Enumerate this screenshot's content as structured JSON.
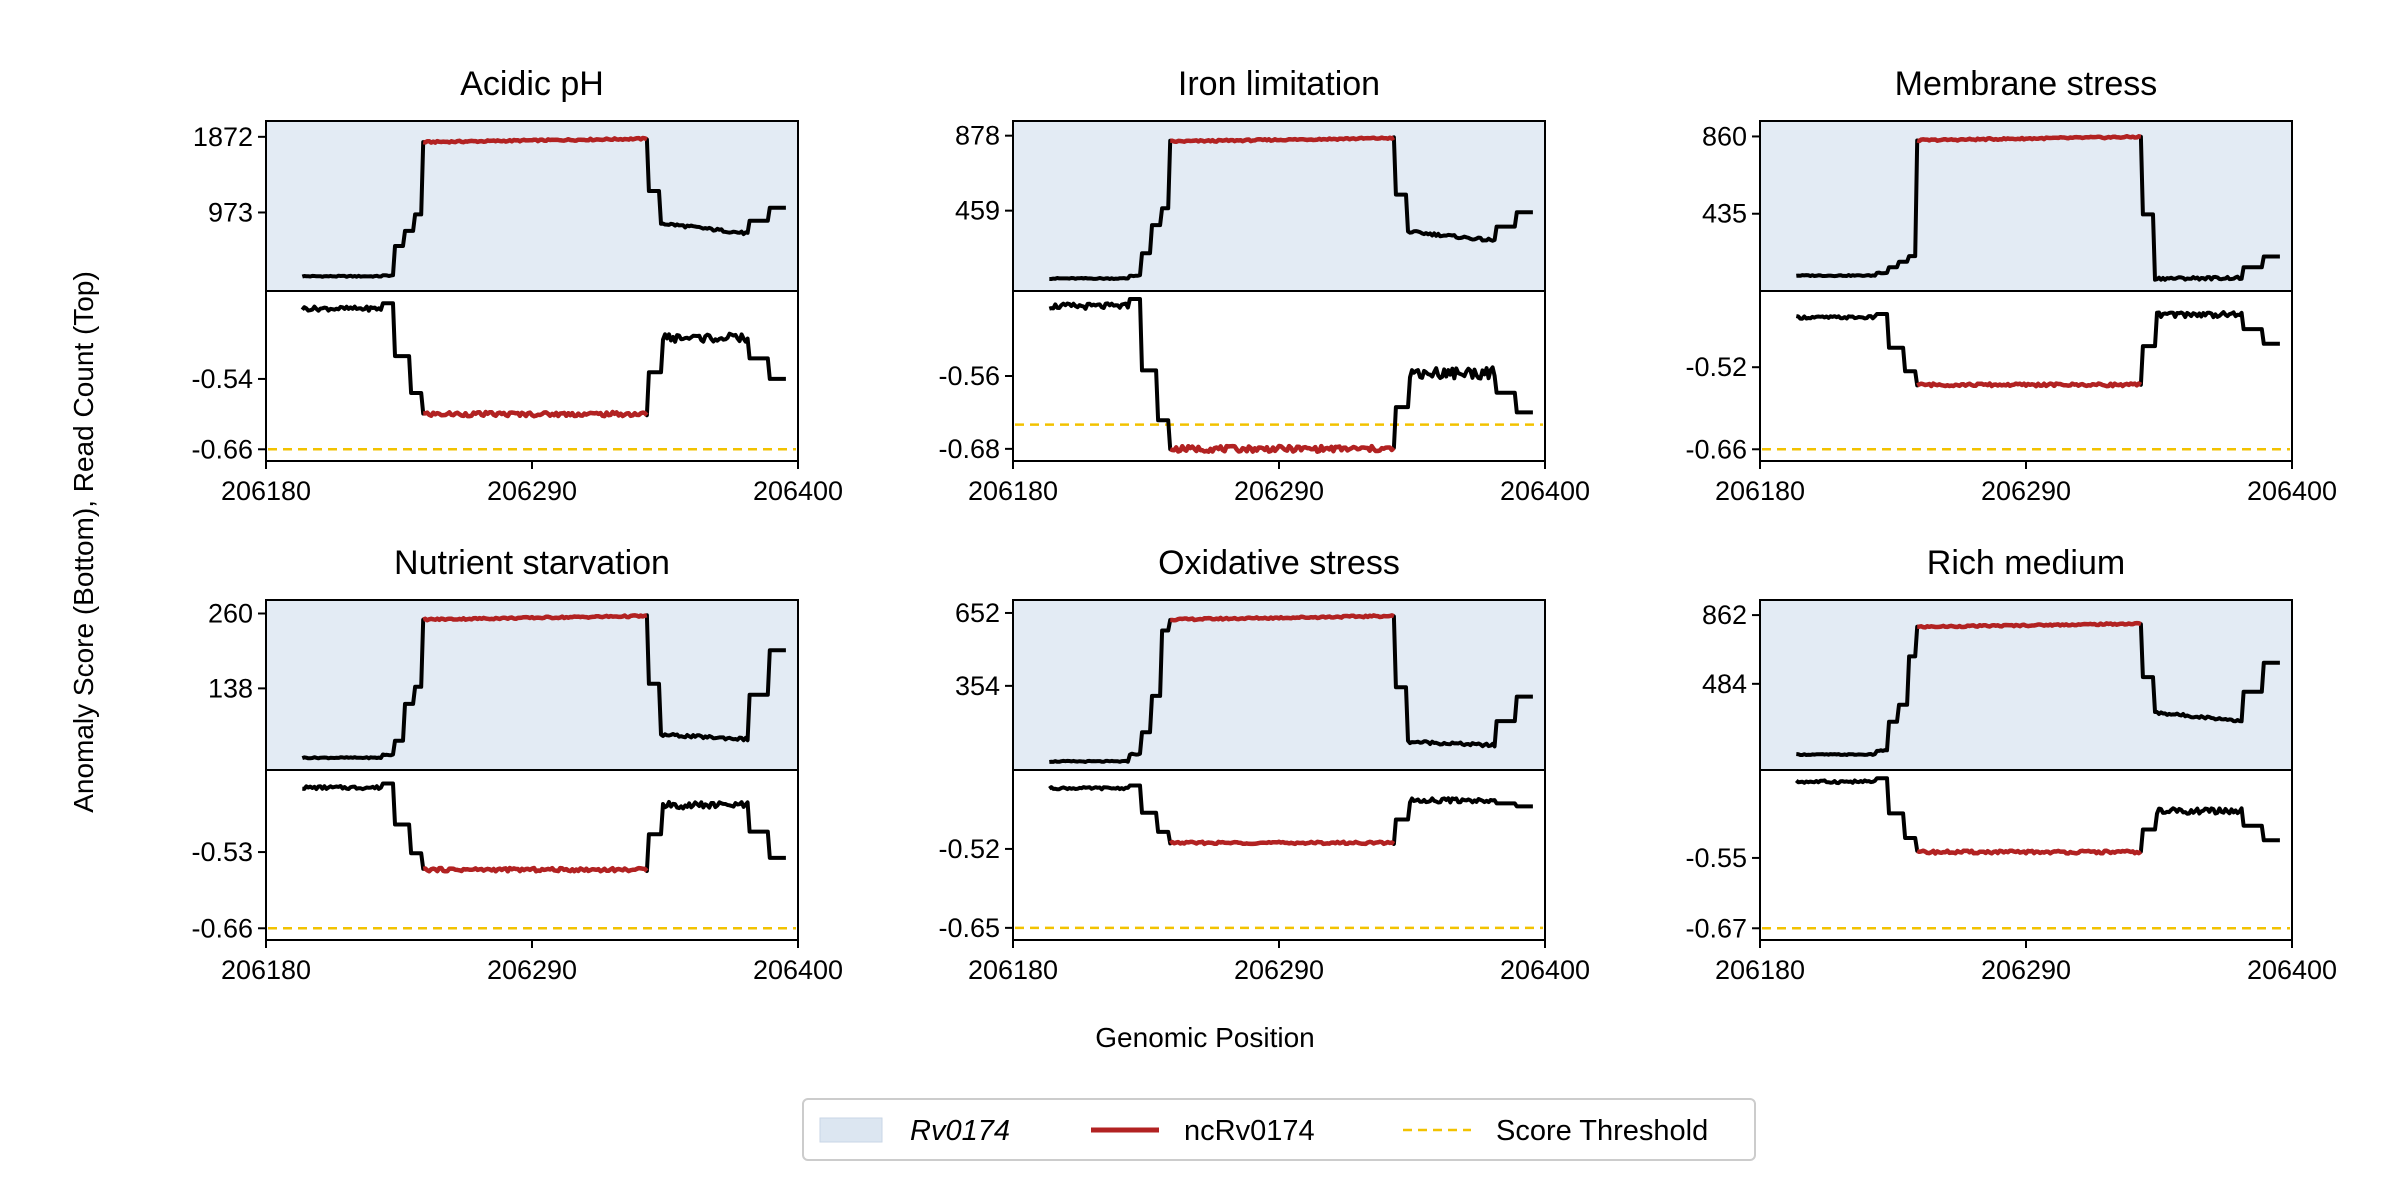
{
  "chart_data": {
    "type": "line",
    "xlabel": "Genomic Position",
    "ylabel": "Anomaly Score (Bottom), Read Count (Top)",
    "xlim": [
      206180,
      206400
    ],
    "xticks": [
      "206180",
      "206290",
      "206400"
    ],
    "region_start": 206230,
    "region_end": 206345,
    "ncrna_start": 206245,
    "ncrna_end": 206338,
    "legend": {
      "position": "bottom-center",
      "entries": [
        {
          "label": "Rv0174",
          "kind": "patch",
          "color": "#dce6f1",
          "italic": true
        },
        {
          "label": "ncRv0174",
          "kind": "line",
          "color": "#b22222"
        },
        {
          "label": "Score Threshold",
          "kind": "dashed",
          "color": "#f2c200"
        }
      ]
    }
  },
  "panels": [
    {
      "title": "Acidic pH",
      "read": {
        "yticks": [
          1872,
          973
        ],
        "ylim": [
          40,
          2060
        ],
        "base": 215,
        "plateau": 1850,
        "end": 720,
        "right": 1030,
        "steps": [
          0.005,
          0.22,
          0.33,
          0.45
        ]
      },
      "score": {
        "yticks": [
          "-0.54",
          "-0.66"
        ],
        "yvals": [
          -0.54,
          -0.66
        ],
        "ylim": [
          -0.68,
          -0.39
        ],
        "base": -0.42,
        "plateau": -0.6,
        "end": -0.47,
        "right": -0.54,
        "threshold": -0.66
      }
    },
    {
      "title": "Iron limitation",
      "read": {
        "yticks": [
          878,
          459
        ],
        "ylim": [
          10,
          960
        ],
        "base": 80,
        "plateau": 865,
        "end": 290,
        "right": 450,
        "steps": [
          0.02,
          0.18,
          0.38,
          0.5
        ]
      },
      "score": {
        "yticks": [
          "-0.56",
          "-0.68"
        ],
        "yvals": [
          -0.56,
          -0.68
        ],
        "ylim": [
          -0.7,
          -0.42
        ],
        "base": -0.445,
        "plateau": -0.68,
        "end": -0.555,
        "right": -0.62,
        "threshold": -0.64
      }
    },
    {
      "title": "Membrane stress",
      "read": {
        "yticks": [
          860,
          435
        ],
        "ylim": [
          10,
          945
        ],
        "base": 95,
        "plateau": 858,
        "end": 82,
        "right": 200,
        "steps": [
          0.02,
          0.06,
          0.1,
          0.14
        ]
      },
      "score": {
        "yticks": [
          "-0.52",
          "-0.66"
        ],
        "yvals": [
          -0.52,
          -0.66
        ],
        "ylim": [
          -0.68,
          -0.39
        ],
        "base": -0.435,
        "plateau": -0.55,
        "end": -0.43,
        "right": -0.48,
        "threshold": -0.66
      }
    },
    {
      "title": "Nutrient starvation",
      "read": {
        "yticks": [
          260,
          138
        ],
        "ylim": [
          5,
          282
        ],
        "base": 25,
        "plateau": 256,
        "end": 55,
        "right": 200,
        "steps": [
          0.02,
          0.12,
          0.38,
          0.5
        ]
      },
      "score": {
        "yticks": [
          "-0.53",
          "-0.66"
        ],
        "yvals": [
          -0.53,
          -0.66
        ],
        "ylim": [
          -0.68,
          -0.39
        ],
        "base": -0.42,
        "plateau": -0.56,
        "end": -0.45,
        "right": -0.54,
        "threshold": -0.66
      }
    },
    {
      "title": "Oxidative stress",
      "read": {
        "yticks": [
          652,
          354
        ],
        "ylim": [
          10,
          705
        ],
        "base": 45,
        "plateau": 640,
        "end": 110,
        "right": 310,
        "steps": [
          0.05,
          0.2,
          0.45,
          0.9
        ]
      },
      "score": {
        "yticks": [
          "-0.52",
          "-0.65"
        ],
        "yvals": [
          -0.52,
          -0.65
        ],
        "ylim": [
          -0.67,
          -0.39
        ],
        "base": -0.42,
        "plateau": -0.51,
        "end": -0.44,
        "right": -0.45,
        "threshold": -0.65
      }
    },
    {
      "title": "Rich medium",
      "read": {
        "yticks": [
          862,
          484
        ],
        "ylim": [
          10,
          945
        ],
        "base": 95,
        "plateau": 815,
        "end": 280,
        "right": 600,
        "steps": [
          0.03,
          0.25,
          0.38,
          0.75
        ]
      },
      "score": {
        "yticks": [
          "-0.55",
          "-0.67"
        ],
        "yvals": [
          -0.55,
          -0.67
        ],
        "ylim": [
          -0.69,
          -0.4
        ],
        "base": -0.42,
        "plateau": -0.54,
        "end": -0.47,
        "right": -0.52,
        "threshold": -0.67
      }
    }
  ]
}
